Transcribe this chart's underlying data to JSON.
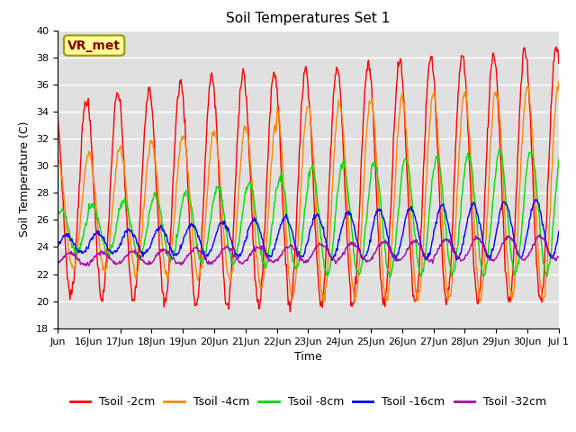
{
  "title": "Soil Temperatures Set 1",
  "xlabel": "Time",
  "ylabel": "Soil Temperature (C)",
  "ylim": [
    18,
    40
  ],
  "yticks": [
    18,
    20,
    22,
    24,
    26,
    28,
    30,
    32,
    34,
    36,
    38,
    40
  ],
  "colors": {
    "Tsoil -2cm": "#ff0000",
    "Tsoil -4cm": "#ff8800",
    "Tsoil -8cm": "#00dd00",
    "Tsoil -16cm": "#0000ff",
    "Tsoil -32cm": "#aa00aa"
  },
  "annotation_text": "VR_met",
  "annotation_bbox_facecolor": "#ffff99",
  "annotation_bbox_edgecolor": "#999900",
  "annotation_text_color": "#880000",
  "background_color": "#ffffff",
  "plot_bg_color": "#e0e0e0",
  "grid_color": "#ffffff",
  "title_fontsize": 11,
  "axis_fontsize": 9,
  "tick_fontsize": 8,
  "legend_fontsize": 9
}
